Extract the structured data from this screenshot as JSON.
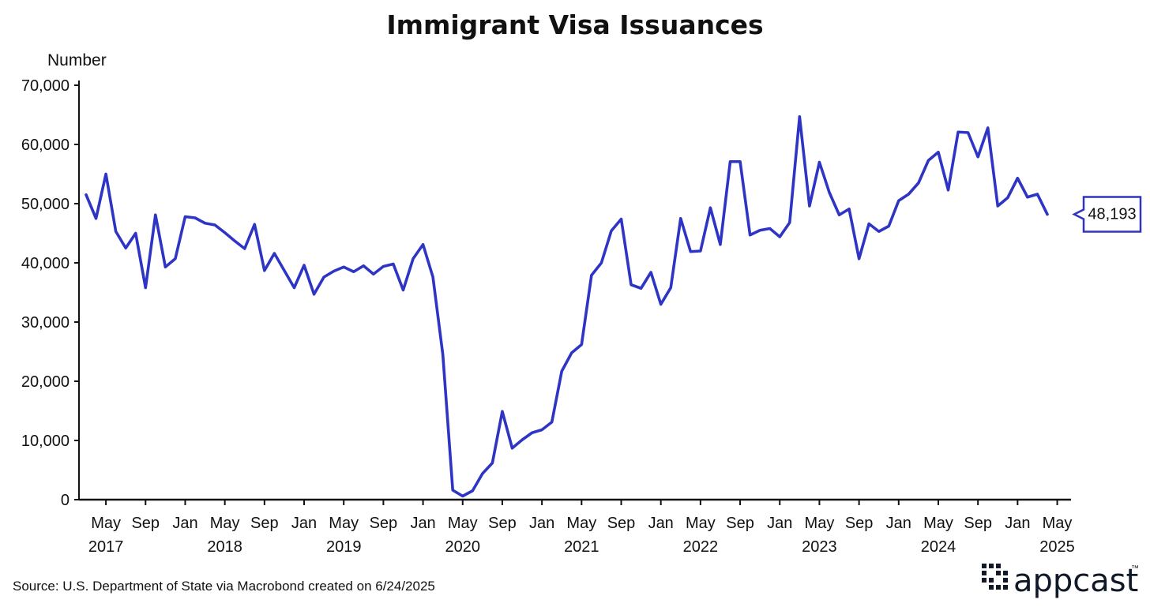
{
  "chart_data": {
    "type": "line",
    "title": "Immigrant Visa Issuances",
    "ylabel": "Number",
    "xlabel": "",
    "ylim": [
      0,
      70000
    ],
    "y_ticks": [
      0,
      10000,
      20000,
      30000,
      40000,
      50000,
      60000,
      70000
    ],
    "y_tick_labels": [
      "0",
      "10,000",
      "20,000",
      "30,000",
      "40,000",
      "50,000",
      "60,000",
      "70,000"
    ],
    "x_start": "2017-03",
    "month_ticks": [
      {
        "label": "May",
        "index": 2
      },
      {
        "label": "Sep",
        "index": 6
      },
      {
        "label": "Jan",
        "index": 10
      },
      {
        "label": "May",
        "index": 14
      },
      {
        "label": "Sep",
        "index": 18
      },
      {
        "label": "Jan",
        "index": 22
      },
      {
        "label": "May",
        "index": 26
      },
      {
        "label": "Sep",
        "index": 30
      },
      {
        "label": "Jan",
        "index": 34
      },
      {
        "label": "May",
        "index": 38
      },
      {
        "label": "Sep",
        "index": 42
      },
      {
        "label": "Jan",
        "index": 46
      },
      {
        "label": "May",
        "index": 50
      },
      {
        "label": "Sep",
        "index": 54
      },
      {
        "label": "Jan",
        "index": 58
      },
      {
        "label": "May",
        "index": 62
      },
      {
        "label": "Sep",
        "index": 66
      },
      {
        "label": "Jan",
        "index": 70
      },
      {
        "label": "May",
        "index": 74
      },
      {
        "label": "Sep",
        "index": 78
      },
      {
        "label": "Jan",
        "index": 82
      },
      {
        "label": "May",
        "index": 86
      },
      {
        "label": "Sep",
        "index": 90
      },
      {
        "label": "Jan",
        "index": 94
      },
      {
        "label": "May",
        "index": 98
      }
    ],
    "year_ticks": [
      {
        "label": "2017",
        "index": 2
      },
      {
        "label": "2018",
        "index": 14
      },
      {
        "label": "2019",
        "index": 26
      },
      {
        "label": "2020",
        "index": 38
      },
      {
        "label": "2021",
        "index": 50
      },
      {
        "label": "2022",
        "index": 62
      },
      {
        "label": "2023",
        "index": 74
      },
      {
        "label": "2024",
        "index": 86
      },
      {
        "label": "2025",
        "index": 98
      }
    ],
    "series": [
      {
        "name": "Immigrant Visa Issuances",
        "color": "#2e35c4",
        "values": [
          51500,
          47500,
          55000,
          45300,
          42500,
          45000,
          35800,
          48100,
          39300,
          40700,
          47800,
          47600,
          46700,
          46400,
          45100,
          43700,
          42400,
          46500,
          38700,
          41600,
          38700,
          35800,
          39600,
          34700,
          37600,
          38600,
          39300,
          38500,
          39500,
          38100,
          39400,
          39800,
          35400,
          40700,
          43100,
          37600,
          24500,
          1600,
          600,
          1500,
          4400,
          6200,
          14900,
          8700,
          10100,
          11300,
          11800,
          13100,
          21700,
          24800,
          26200,
          37900,
          40000,
          45400,
          47400,
          36300,
          35700,
          38400,
          33000,
          35800,
          47500,
          41900,
          42000,
          49300,
          43100,
          57100,
          57100,
          44700,
          45500,
          45800,
          44400,
          46800,
          64700,
          49600,
          57000,
          51900,
          48100,
          49100,
          40700,
          46600,
          45300,
          46200,
          50500,
          51600,
          53500,
          57300,
          58700,
          52300,
          62100,
          62000,
          57900,
          62800,
          49600,
          51000,
          54300,
          51100,
          51600,
          48193
        ]
      }
    ],
    "last_value_label": "48,193"
  },
  "source": "Source: U.S. Department of State via Macrobond created on 6/24/2025",
  "logo": {
    "text": "appcast",
    "trademark": "™"
  }
}
